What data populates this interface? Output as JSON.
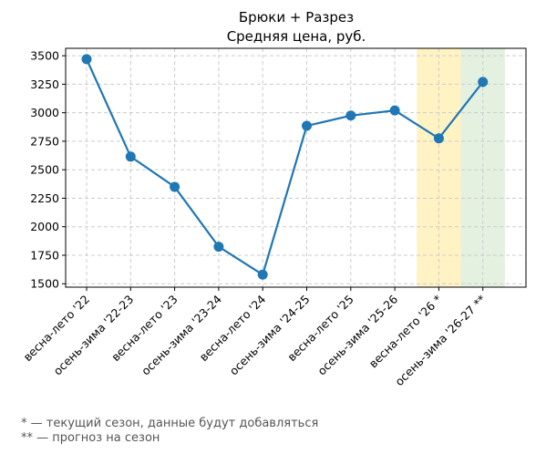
{
  "chart_data": {
    "type": "line",
    "title": "Брюки + Разрез",
    "subtitle": "Средняя цена, руб.",
    "xlabel": "",
    "ylabel": "",
    "categories": [
      "весна-лето '22",
      "осень-зима '22-23",
      "весна-лето '23",
      "осень-зима '23-24",
      "весна-лето '24",
      "осень-зима '24-25",
      "весна-лето '25",
      "осень-зима '25-26",
      "весна-лето '26 *",
      "осень-зима '26-27 **"
    ],
    "series": [
      {
        "values": [
          3470,
          2615,
          2350,
          1825,
          1580,
          2885,
          2975,
          3020,
          2775,
          3270
        ]
      }
    ],
    "yticks": [
      1500,
      1750,
      2000,
      2250,
      2500,
      2750,
      3000,
      3250,
      3500
    ],
    "ylim": [
      1470,
      3565
    ],
    "grid": true,
    "highlights": [
      {
        "category_index": 8,
        "color": "#fff3c4"
      },
      {
        "category_index": 9,
        "color": "#e4f1e0"
      }
    ],
    "line_color": "#1f77b4"
  },
  "footnotes": [
    "* — текущий сезон, данные будут добавляться",
    "** — прогноз на сезон"
  ]
}
